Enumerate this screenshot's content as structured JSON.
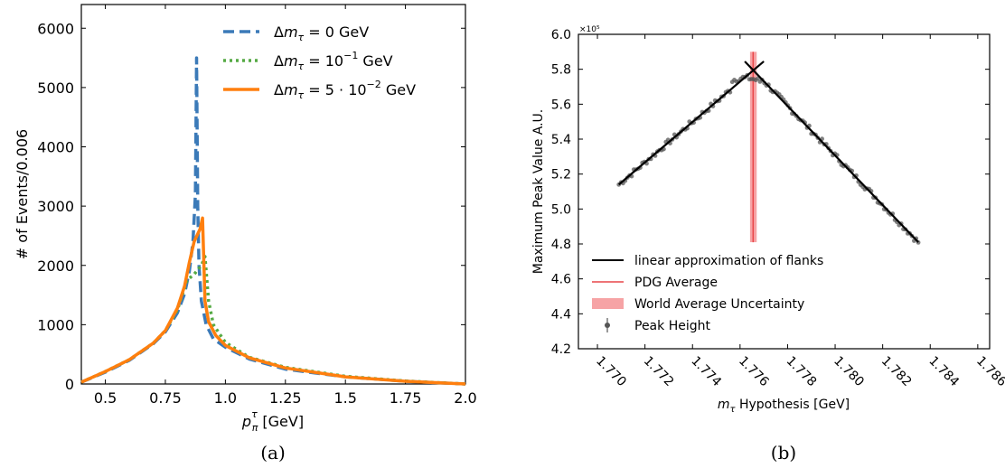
{
  "captions": {
    "a": "(a)",
    "b": "(b)"
  },
  "chart_data": [
    {
      "type": "line",
      "xlabel": "p_π^τ [GeV]",
      "ylabel": "# of Events/0.006",
      "xlim": [
        0.4,
        2.0
      ],
      "ylim": [
        0,
        6400
      ],
      "x_ticks": [
        "0.5",
        "0.75",
        "1.0",
        "1.25",
        "1.5",
        "1.75",
        "2.0"
      ],
      "y_ticks": [
        "0",
        "1000",
        "2000",
        "3000",
        "4000",
        "5000",
        "6000"
      ],
      "legend_position": "top-right",
      "series": [
        {
          "name": "Δm_τ = 0 GeV",
          "color": "#3b7ab8",
          "style": "dashed",
          "x": [
            0.4,
            0.5,
            0.6,
            0.7,
            0.75,
            0.8,
            0.83,
            0.85,
            0.865,
            0.875,
            0.88,
            0.885,
            0.89,
            0.9,
            0.92,
            0.95,
            1.0,
            1.1,
            1.25,
            1.5,
            1.75,
            2.0
          ],
          "y": [
            30,
            200,
            400,
            680,
            880,
            1200,
            1520,
            1900,
            2400,
            3200,
            5500,
            3000,
            2000,
            1400,
            1000,
            760,
            620,
            420,
            250,
            120,
            45,
            0
          ]
        },
        {
          "name": "Δm_τ = 10⁻¹ GeV",
          "color": "#55aa44",
          "style": "dotted",
          "x": [
            0.4,
            0.5,
            0.6,
            0.7,
            0.75,
            0.8,
            0.84,
            0.87,
            0.9,
            0.915,
            0.93,
            0.95,
            1.0,
            1.1,
            1.25,
            1.5,
            1.75,
            2.0
          ],
          "y": [
            30,
            210,
            410,
            690,
            900,
            1250,
            1750,
            1850,
            2000,
            2150,
            1400,
            1000,
            700,
            450,
            280,
            130,
            50,
            0
          ]
        },
        {
          "name": "Δm_τ = 5 · 10⁻² GeV",
          "color": "#ff7f0e",
          "style": "solid",
          "x": [
            0.4,
            0.5,
            0.6,
            0.7,
            0.75,
            0.8,
            0.83,
            0.85,
            0.87,
            0.895,
            0.905,
            0.915,
            0.93,
            0.96,
            1.0,
            1.1,
            1.25,
            1.5,
            1.75,
            2.0
          ],
          "y": [
            30,
            210,
            410,
            690,
            900,
            1280,
            1650,
            2050,
            2400,
            2620,
            2800,
            1400,
            1050,
            820,
            650,
            440,
            270,
            120,
            45,
            0
          ]
        }
      ]
    },
    {
      "type": "scatter",
      "xlabel": "m_τ Hypothesis [GeV]",
      "ylabel": "Maximum Peak Value A.U.",
      "y_multiplier": "×10⁵",
      "xlim": [
        1.7692,
        1.7865
      ],
      "ylim": [
        4.2,
        6.0
      ],
      "x_ticks": [
        "1.770",
        "1.772",
        "1.774",
        "1.776",
        "1.778",
        "1.780",
        "1.782",
        "1.784",
        "1.786"
      ],
      "y_ticks": [
        "4.2",
        "4.4",
        "4.6",
        "4.8",
        "5.0",
        "5.2",
        "5.4",
        "5.6",
        "5.8",
        "6.0"
      ],
      "legend_position": "lower-center",
      "legend": [
        "linear approximation of flanks",
        "PDG Average",
        "World Average Uncertainty",
        "Peak Height"
      ],
      "flank_lines": [
        {
          "x": [
            1.7709,
            1.777
          ],
          "y": [
            5.14,
            5.845
          ]
        },
        {
          "x": [
            1.7762,
            1.7835
          ],
          "y": [
            5.845,
            4.81
          ]
        }
      ],
      "pdg_average": 1.77655,
      "world_average_band": [
        1.77642,
        1.7767
      ],
      "band_ylim": [
        4.81,
        5.9
      ],
      "colors": {
        "flank": "#000000",
        "pdg": "#e8474a",
        "band": "#f6a3a5",
        "points": "#555555"
      }
    }
  ]
}
